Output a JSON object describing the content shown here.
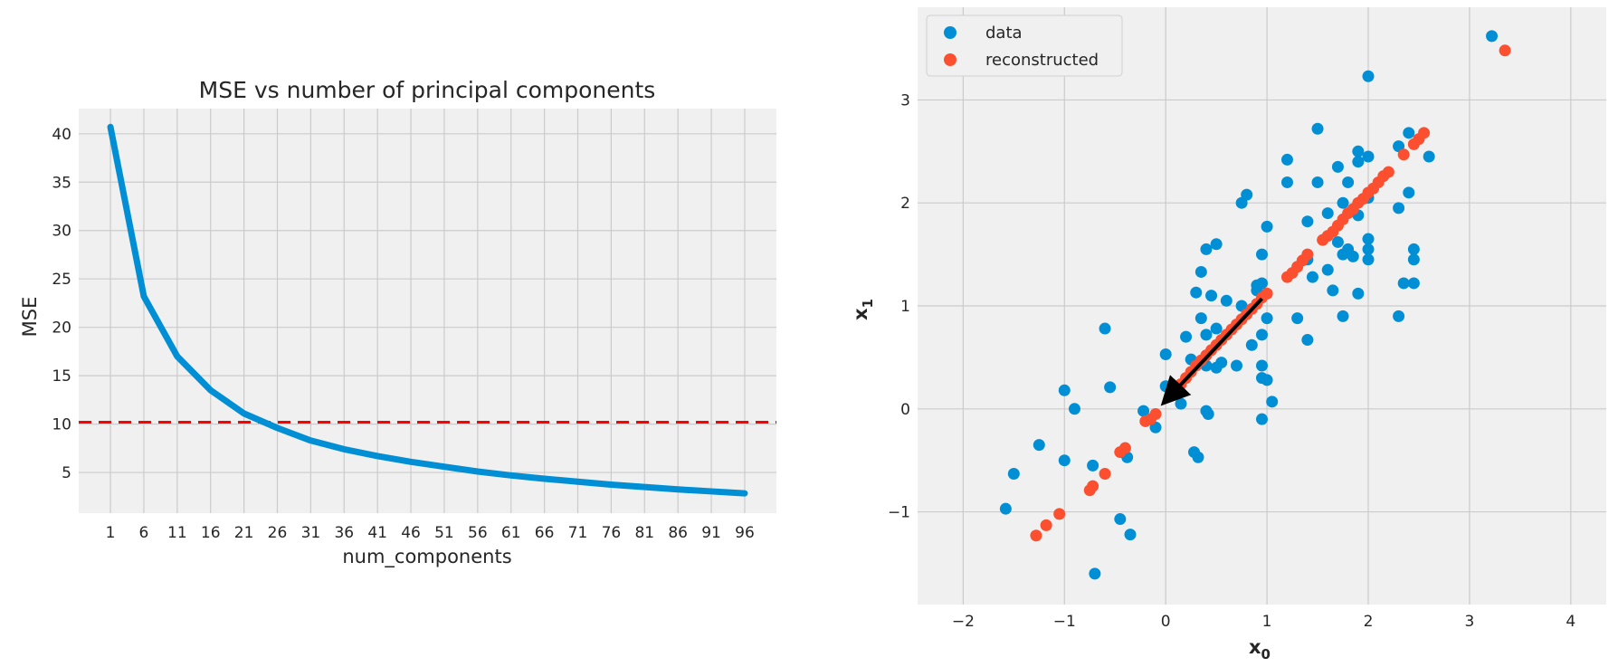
{
  "chart_data": [
    {
      "type": "line",
      "title": "MSE vs number of principal components",
      "xlabel": "num_components",
      "ylabel": "MSE",
      "x": [
        1,
        6,
        11,
        16,
        21,
        26,
        31,
        36,
        41,
        46,
        51,
        56,
        61,
        66,
        71,
        76,
        81,
        86,
        91,
        96
      ],
      "x_tick_labels": [
        "1",
        "6",
        "11",
        "16",
        "21",
        "26",
        "31",
        "36",
        "41",
        "46",
        "51",
        "56",
        "61",
        "66",
        "71",
        "76",
        "81",
        "86",
        "91",
        "96"
      ],
      "y_ticks": [
        5,
        10,
        15,
        20,
        25,
        30,
        35,
        40
      ],
      "y_tick_labels": [
        "5",
        "10",
        "15",
        "20",
        "25",
        "30",
        "35",
        "40"
      ],
      "xlim": [
        -3.75,
        100.75
      ],
      "ylim": [
        0.8,
        42.6
      ],
      "series": [
        {
          "color": "#008fd5",
          "values": [
            40.7,
            23.2,
            17.0,
            13.5,
            11.1,
            9.6,
            8.3,
            7.4,
            6.7,
            6.1,
            5.6,
            5.1,
            4.7,
            4.35,
            4.05,
            3.75,
            3.5,
            3.25,
            3.05,
            2.85
          ]
        }
      ],
      "reference_line": {
        "y": 10.2,
        "color": "#ff0000",
        "style": "dashed"
      },
      "grid": true,
      "background": "#f0f0f0"
    },
    {
      "type": "scatter",
      "xlabel_main": "x",
      "xlabel_sub": "0",
      "ylabel_main": "x",
      "ylabel_sub": "1",
      "x_ticks": [
        -2,
        -1,
        0,
        1,
        2,
        3,
        4
      ],
      "x_tick_labels": [
        "−2",
        "−1",
        "0",
        "1",
        "2",
        "3",
        "4"
      ],
      "y_ticks": [
        -1,
        0,
        1,
        2,
        3
      ],
      "y_tick_labels": [
        "−1",
        "0",
        "1",
        "2",
        "3"
      ],
      "xlim": [
        -2.45,
        4.35
      ],
      "ylim": [
        -1.9,
        3.9
      ],
      "grid": true,
      "background": "#f0f0f0",
      "legend_position": "top-left",
      "series": [
        {
          "name": "data",
          "color": "#008fd5",
          "points": [
            [
              3.22,
              3.62
            ],
            [
              2.0,
              3.23
            ],
            [
              1.5,
              2.72
            ],
            [
              1.2,
              2.42
            ],
            [
              1.2,
              2.2
            ],
            [
              1.5,
              2.2
            ],
            [
              1.7,
              2.35
            ],
            [
              1.9,
              2.5
            ],
            [
              1.9,
              2.4
            ],
            [
              2.0,
              2.45
            ],
            [
              2.3,
              2.55
            ],
            [
              2.4,
              2.68
            ],
            [
              2.6,
              2.45
            ],
            [
              1.8,
              2.2
            ],
            [
              2.4,
              2.1
            ],
            [
              2.3,
              1.95
            ],
            [
              2.0,
              2.05
            ],
            [
              1.6,
              1.9
            ],
            [
              1.75,
              2.0
            ],
            [
              1.9,
              1.88
            ],
            [
              1.4,
              1.82
            ],
            [
              0.75,
              2.0
            ],
            [
              0.8,
              2.08
            ],
            [
              1.0,
              1.77
            ],
            [
              2.0,
              1.65
            ],
            [
              2.0,
              1.55
            ],
            [
              2.0,
              1.45
            ],
            [
              2.45,
              1.55
            ],
            [
              2.45,
              1.45
            ],
            [
              1.8,
              1.55
            ],
            [
              1.75,
              1.5
            ],
            [
              1.6,
              1.35
            ],
            [
              1.7,
              1.62
            ],
            [
              1.85,
              1.48
            ],
            [
              1.4,
              1.45
            ],
            [
              1.45,
              1.28
            ],
            [
              1.65,
              1.15
            ],
            [
              1.9,
              1.12
            ],
            [
              2.35,
              1.22
            ],
            [
              2.45,
              1.22
            ],
            [
              2.3,
              0.9
            ],
            [
              1.75,
              0.9
            ],
            [
              1.3,
              0.88
            ],
            [
              0.5,
              1.6
            ],
            [
              0.4,
              1.55
            ],
            [
              0.35,
              1.33
            ],
            [
              0.45,
              1.1
            ],
            [
              0.3,
              1.13
            ],
            [
              0.6,
              1.05
            ],
            [
              0.75,
              1.0
            ],
            [
              0.9,
              1.2
            ],
            [
              0.95,
              1.22
            ],
            [
              0.95,
              1.5
            ],
            [
              1.0,
              0.88
            ],
            [
              0.9,
              1.15
            ],
            [
              0.35,
              0.88
            ],
            [
              0.5,
              0.78
            ],
            [
              0.2,
              0.7
            ],
            [
              0.4,
              0.72
            ],
            [
              0.95,
              0.72
            ],
            [
              0.0,
              0.53
            ],
            [
              0.25,
              0.48
            ],
            [
              0.4,
              0.42
            ],
            [
              0.55,
              0.45
            ],
            [
              0.5,
              0.4
            ],
            [
              0.7,
              0.42
            ],
            [
              0.95,
              0.42
            ],
            [
              0.95,
              0.3
            ],
            [
              1.0,
              0.28
            ],
            [
              0.85,
              0.62
            ],
            [
              -0.6,
              0.78
            ],
            [
              0.0,
              0.22
            ],
            [
              0.1,
              0.15
            ],
            [
              0.15,
              0.05
            ],
            [
              0.4,
              -0.02
            ],
            [
              0.42,
              -0.05
            ],
            [
              0.95,
              -0.1
            ],
            [
              1.05,
              0.07
            ],
            [
              -1.0,
              0.18
            ],
            [
              -0.9,
              0.0
            ],
            [
              -0.55,
              0.21
            ],
            [
              -0.1,
              -0.18
            ],
            [
              -0.22,
              -0.02
            ],
            [
              0.28,
              -0.42
            ],
            [
              0.32,
              -0.47
            ],
            [
              -0.38,
              -0.47
            ],
            [
              -1.0,
              -0.5
            ],
            [
              -0.72,
              -0.55
            ],
            [
              -1.25,
              -0.35
            ],
            [
              -1.5,
              -0.63
            ],
            [
              -1.58,
              -0.97
            ],
            [
              -0.45,
              -1.07
            ],
            [
              -0.35,
              -1.22
            ],
            [
              -0.7,
              -1.6
            ],
            [
              1.4,
              0.67
            ]
          ]
        },
        {
          "name": "reconstructed",
          "color": "#fc4f30",
          "points": [
            [
              3.35,
              3.48
            ],
            [
              2.55,
              2.68
            ],
            [
              2.5,
              2.62
            ],
            [
              2.45,
              2.57
            ],
            [
              2.35,
              2.47
            ],
            [
              2.2,
              2.3
            ],
            [
              2.15,
              2.26
            ],
            [
              2.1,
              2.2
            ],
            [
              2.05,
              2.14
            ],
            [
              2.0,
              2.1
            ],
            [
              1.95,
              2.04
            ],
            [
              1.9,
              2.0
            ],
            [
              1.85,
              1.94
            ],
            [
              1.8,
              1.9
            ],
            [
              1.75,
              1.84
            ],
            [
              1.7,
              1.78
            ],
            [
              1.65,
              1.72
            ],
            [
              1.6,
              1.68
            ],
            [
              1.55,
              1.64
            ],
            [
              1.4,
              1.5
            ],
            [
              1.35,
              1.44
            ],
            [
              1.3,
              1.38
            ],
            [
              1.25,
              1.32
            ],
            [
              1.2,
              1.28
            ],
            [
              1.0,
              1.12
            ],
            [
              0.95,
              1.08
            ],
            [
              0.9,
              1.02
            ],
            [
              0.85,
              0.97
            ],
            [
              0.8,
              0.92
            ],
            [
              0.75,
              0.87
            ],
            [
              0.7,
              0.82
            ],
            [
              0.65,
              0.77
            ],
            [
              0.6,
              0.72
            ],
            [
              0.55,
              0.67
            ],
            [
              0.5,
              0.62
            ],
            [
              0.45,
              0.57
            ],
            [
              0.4,
              0.52
            ],
            [
              0.35,
              0.47
            ],
            [
              0.3,
              0.42
            ],
            [
              0.25,
              0.36
            ],
            [
              0.2,
              0.3
            ],
            [
              0.15,
              0.24
            ],
            [
              0.1,
              0.19
            ],
            [
              0.05,
              0.14
            ],
            [
              -0.1,
              -0.05
            ],
            [
              -0.15,
              -0.1
            ],
            [
              -0.2,
              -0.12
            ],
            [
              -0.4,
              -0.38
            ],
            [
              -0.45,
              -0.42
            ],
            [
              -0.6,
              -0.63
            ],
            [
              -0.72,
              -0.75
            ],
            [
              -0.75,
              -0.79
            ],
            [
              -1.05,
              -1.02
            ],
            [
              -1.18,
              -1.13
            ],
            [
              -1.28,
              -1.23
            ]
          ]
        }
      ],
      "arrow": {
        "from": [
          0.95,
          1.07
        ],
        "to": [
          0.0,
          0.08
        ],
        "color": "#000000"
      }
    }
  ]
}
